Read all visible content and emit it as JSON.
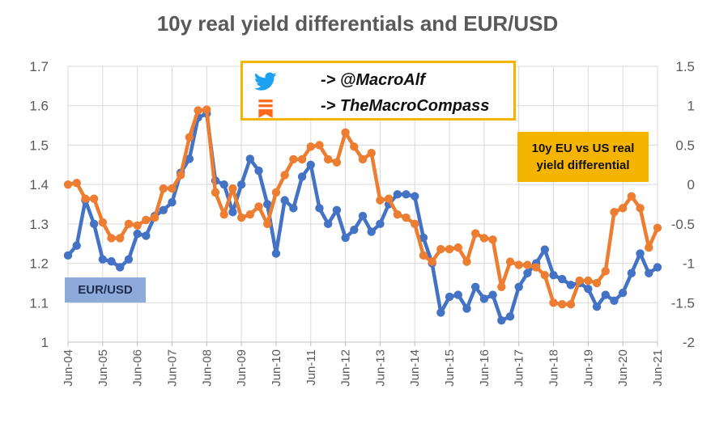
{
  "chart_data": {
    "type": "line",
    "title": "10y real yield differentials and EUR/USD",
    "x_tick_labels": [
      "Jun-04",
      "Jun-05",
      "Jun-06",
      "Jun-07",
      "Jun-08",
      "Jun-09",
      "Jun-10",
      "Jun-11",
      "Jun-12",
      "Jun-13",
      "Jun-14",
      "Jun-15",
      "Jun-16",
      "Jun-17",
      "Jun-18",
      "Jun-19",
      "Jun-20",
      "Jun-21"
    ],
    "x_range": [
      2004.5,
      2021.5
    ],
    "left_axis": {
      "ylim": [
        1.0,
        1.7
      ],
      "ticks": [
        "1",
        "1.1",
        "1.2",
        "1.3",
        "1.4",
        "1.5",
        "1.6",
        "1.7"
      ]
    },
    "right_axis": {
      "ylim": [
        -2.0,
        1.5
      ],
      "ticks": [
        "-2",
        "-1.5",
        "-1",
        "-0.5",
        "0",
        "0.5",
        "1",
        "1.5"
      ]
    },
    "grid": true,
    "series": [
      {
        "name": "EUR/USD",
        "axis": "left",
        "color": "#4472c4",
        "points": [
          [
            2004.5,
            1.22
          ],
          [
            2004.75,
            1.245
          ],
          [
            2005.0,
            1.36
          ],
          [
            2005.25,
            1.3
          ],
          [
            2005.5,
            1.21
          ],
          [
            2005.75,
            1.205
          ],
          [
            2006.0,
            1.19
          ],
          [
            2006.25,
            1.21
          ],
          [
            2006.5,
            1.275
          ],
          [
            2006.75,
            1.27
          ],
          [
            2007.0,
            1.32
          ],
          [
            2007.25,
            1.335
          ],
          [
            2007.5,
            1.355
          ],
          [
            2007.75,
            1.43
          ],
          [
            2008.0,
            1.465
          ],
          [
            2008.25,
            1.57
          ],
          [
            2008.5,
            1.58
          ],
          [
            2008.75,
            1.41
          ],
          [
            2009.0,
            1.4
          ],
          [
            2009.25,
            1.33
          ],
          [
            2009.5,
            1.4
          ],
          [
            2009.75,
            1.465
          ],
          [
            2010.0,
            1.435
          ],
          [
            2010.25,
            1.35
          ],
          [
            2010.5,
            1.225
          ],
          [
            2010.75,
            1.36
          ],
          [
            2011.0,
            1.34
          ],
          [
            2011.25,
            1.42
          ],
          [
            2011.5,
            1.45
          ],
          [
            2011.75,
            1.34
          ],
          [
            2012.0,
            1.3
          ],
          [
            2012.25,
            1.335
          ],
          [
            2012.5,
            1.265
          ],
          [
            2012.75,
            1.285
          ],
          [
            2013.0,
            1.32
          ],
          [
            2013.25,
            1.28
          ],
          [
            2013.5,
            1.3
          ],
          [
            2013.75,
            1.35
          ],
          [
            2014.0,
            1.375
          ],
          [
            2014.25,
            1.375
          ],
          [
            2014.5,
            1.37
          ],
          [
            2014.75,
            1.265
          ],
          [
            2015.0,
            1.2
          ],
          [
            2015.25,
            1.075
          ],
          [
            2015.5,
            1.115
          ],
          [
            2015.75,
            1.12
          ],
          [
            2016.0,
            1.085
          ],
          [
            2016.25,
            1.14
          ],
          [
            2016.5,
            1.11
          ],
          [
            2016.75,
            1.12
          ],
          [
            2017.0,
            1.055
          ],
          [
            2017.25,
            1.065
          ],
          [
            2017.5,
            1.14
          ],
          [
            2017.75,
            1.175
          ],
          [
            2018.0,
            1.2
          ],
          [
            2018.25,
            1.235
          ],
          [
            2018.5,
            1.17
          ],
          [
            2018.75,
            1.16
          ],
          [
            2019.0,
            1.145
          ],
          [
            2019.25,
            1.15
          ],
          [
            2019.5,
            1.135
          ],
          [
            2019.75,
            1.09
          ],
          [
            2020.0,
            1.12
          ],
          [
            2020.25,
            1.105
          ],
          [
            2020.5,
            1.125
          ],
          [
            2020.75,
            1.175
          ],
          [
            2021.0,
            1.225
          ],
          [
            2021.25,
            1.175
          ],
          [
            2021.5,
            1.19
          ]
        ]
      },
      {
        "name": "10y EU vs US real yield differential",
        "axis": "right",
        "color": "#ed7d31",
        "points": [
          [
            2004.5,
            0.0
          ],
          [
            2004.75,
            0.02
          ],
          [
            2005.0,
            -0.18
          ],
          [
            2005.25,
            -0.18
          ],
          [
            2005.5,
            -0.48
          ],
          [
            2005.75,
            -0.68
          ],
          [
            2006.0,
            -0.68
          ],
          [
            2006.25,
            -0.5
          ],
          [
            2006.5,
            -0.52
          ],
          [
            2006.75,
            -0.45
          ],
          [
            2007.0,
            -0.42
          ],
          [
            2007.25,
            -0.05
          ],
          [
            2007.5,
            -0.05
          ],
          [
            2007.75,
            0.12
          ],
          [
            2008.0,
            0.6
          ],
          [
            2008.25,
            0.94
          ],
          [
            2008.5,
            0.95
          ],
          [
            2008.75,
            -0.1
          ],
          [
            2009.0,
            -0.38
          ],
          [
            2009.25,
            -0.05
          ],
          [
            2009.5,
            -0.42
          ],
          [
            2009.75,
            -0.38
          ],
          [
            2010.0,
            -0.28
          ],
          [
            2010.25,
            -0.5
          ],
          [
            2010.5,
            -0.1
          ],
          [
            2010.75,
            0.12
          ],
          [
            2011.0,
            0.32
          ],
          [
            2011.25,
            0.32
          ],
          [
            2011.5,
            0.48
          ],
          [
            2011.75,
            0.5
          ],
          [
            2012.0,
            0.32
          ],
          [
            2012.25,
            0.28
          ],
          [
            2012.5,
            0.66
          ],
          [
            2012.75,
            0.48
          ],
          [
            2013.0,
            0.32
          ],
          [
            2013.25,
            0.4
          ],
          [
            2013.5,
            -0.2
          ],
          [
            2013.75,
            -0.18
          ],
          [
            2014.0,
            -0.38
          ],
          [
            2014.25,
            -0.42
          ],
          [
            2014.5,
            -0.5
          ],
          [
            2014.75,
            -0.9
          ],
          [
            2015.0,
            -0.98
          ],
          [
            2015.25,
            -0.82
          ],
          [
            2015.5,
            -0.82
          ],
          [
            2015.75,
            -0.8
          ],
          [
            2016.0,
            -0.98
          ],
          [
            2016.25,
            -0.62
          ],
          [
            2016.5,
            -0.68
          ],
          [
            2016.75,
            -0.7
          ],
          [
            2017.0,
            -1.3
          ],
          [
            2017.25,
            -0.98
          ],
          [
            2017.5,
            -1.02
          ],
          [
            2017.75,
            -1.02
          ],
          [
            2018.0,
            -1.05
          ],
          [
            2018.25,
            -1.15
          ],
          [
            2018.5,
            -1.5
          ],
          [
            2018.75,
            -1.52
          ],
          [
            2019.0,
            -1.52
          ],
          [
            2019.25,
            -1.22
          ],
          [
            2019.5,
            -1.22
          ],
          [
            2019.75,
            -1.25
          ],
          [
            2020.0,
            -1.1
          ],
          [
            2020.25,
            -0.35
          ],
          [
            2020.5,
            -0.3
          ],
          [
            2020.75,
            -0.15
          ],
          [
            2021.0,
            -0.3
          ],
          [
            2021.25,
            -0.8
          ],
          [
            2021.5,
            -0.55
          ]
        ]
      }
    ]
  },
  "credits": {
    "twitter_text": "-> @MacroAlf",
    "substack_text": "-> TheMacroCompass",
    "twitter_icon": "twitter-bird-icon",
    "substack_icon": "substack-icon",
    "box_color": "#f5b400"
  },
  "labels": {
    "differential": "10y EU vs US real yield differential",
    "eurusd": "EUR/USD",
    "differential_bg": "#f5b400",
    "eurusd_bg": "#8eaadb"
  }
}
